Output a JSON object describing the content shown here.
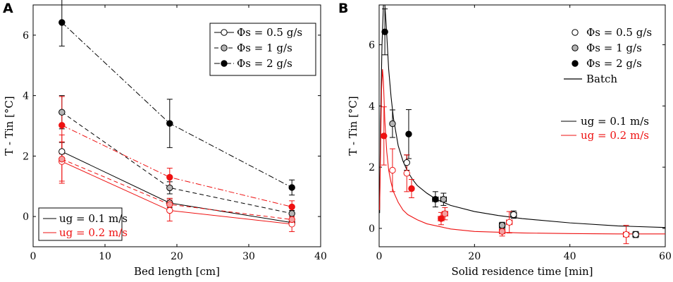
{
  "chart_data": [
    {
      "panel": "A",
      "type": "line",
      "xlabel": "Bed length [cm]",
      "ylabel": "T - Tin [°C]",
      "xlim": [
        0,
        40
      ],
      "ylim": [
        -1,
        7
      ],
      "xticks": [
        0,
        10,
        20,
        30,
        40
      ],
      "yticks": [
        0,
        2,
        4,
        6
      ],
      "x": [
        4,
        19,
        36
      ],
      "legend_flow": [
        {
          "text": "Φs = 0.5 g/s",
          "marker": "open",
          "dash": "solid"
        },
        {
          "text": "Φs = 1 g/s",
          "marker": "gray",
          "dash": "dashed"
        },
        {
          "text": "Φs = 2 g/s",
          "marker": "black",
          "dash": "dashdot"
        }
      ],
      "legend_velocity": [
        {
          "text": "ug = 0.1 m/s",
          "color": "#000000"
        },
        {
          "text": "ug = 0.2 m/s",
          "color": "#ee1111"
        }
      ],
      "series": [
        {
          "name": "Φs = 0.5 g/s, ug = 0.1 m/s",
          "marker": "open",
          "color": "#000000",
          "dash": "solid",
          "values": [
            2.15,
            0.45,
            -0.2
          ],
          "err": [
            0.3,
            0.15,
            0.1
          ]
        },
        {
          "name": "Φs = 1 g/s, ug = 0.1 m/s",
          "marker": "gray",
          "color": "#000000",
          "dash": "dashed",
          "values": [
            3.45,
            0.95,
            0.1
          ],
          "err": [
            0.55,
            0.2,
            0.1
          ]
        },
        {
          "name": "Φs = 2 g/s, ug = 0.1 m/s",
          "marker": "black",
          "color": "#000000",
          "dash": "dashdot",
          "values": [
            6.42,
            3.08,
            0.96
          ],
          "err": [
            0.78,
            0.8,
            0.25
          ]
        },
        {
          "name": "Φs = 0.5 g/s, ug = 0.2 m/s",
          "marker": "open",
          "color": "#ee1111",
          "dash": "solid",
          "values": [
            1.82,
            0.2,
            -0.25
          ],
          "err": [
            0.65,
            0.35,
            0.25
          ]
        },
        {
          "name": "Φs = 1 g/s, ug = 0.2 m/s",
          "marker": "gray",
          "color": "#ee1111",
          "dash": "dashed",
          "values": [
            1.9,
            0.4,
            -0.1
          ],
          "err": [
            0.8,
            0.2,
            0.15
          ]
        },
        {
          "name": "Φs = 2 g/s, ug = 0.2 m/s",
          "marker": "black",
          "color": "#ee1111",
          "dash": "dashdot",
          "values": [
            3.02,
            1.3,
            0.32
          ],
          "err": [
            0.95,
            0.3,
            0.2
          ]
        }
      ]
    },
    {
      "panel": "B",
      "type": "scatter",
      "xlabel": "Solid residence time [min]",
      "ylabel": "T - Tin [°C]",
      "xlim": [
        0,
        60
      ],
      "ylim": [
        -0.6,
        7.3
      ],
      "xticks": [
        0,
        20,
        40,
        60
      ],
      "yticks": [
        0,
        2,
        4,
        6
      ],
      "legend_flow": [
        {
          "text": "Φs = 0.5 g/s",
          "marker": "open"
        },
        {
          "text": "Φs = 1 g/s",
          "marker": "gray"
        },
        {
          "text": "Φs = 2 g/s",
          "marker": "black"
        },
        {
          "text": "Batch",
          "marker": "line"
        }
      ],
      "legend_velocity": [
        {
          "text": "ug = 0.1 m/s",
          "color": "#000000"
        },
        {
          "text": "ug = 0.2 m/s",
          "color": "#ee1111"
        }
      ],
      "points": [
        {
          "marker": "black",
          "color": "#000000",
          "x": 1.2,
          "y": 6.42,
          "yerr": 0.75,
          "xerr": 0
        },
        {
          "marker": "gray",
          "color": "#000000",
          "x": 2.8,
          "y": 3.42,
          "yerr": 0.45,
          "xerr": 0
        },
        {
          "marker": "open",
          "color": "#000000",
          "x": 5.8,
          "y": 2.15,
          "yerr": 0.25,
          "xerr": 0
        },
        {
          "marker": "black",
          "color": "#000000",
          "x": 6.2,
          "y": 3.08,
          "yerr": 0.8,
          "xerr": 0
        },
        {
          "marker": "black",
          "color": "#000000",
          "x": 11.8,
          "y": 0.95,
          "yerr": 0.25,
          "xerr": 0.6
        },
        {
          "marker": "gray",
          "color": "#000000",
          "x": 13.5,
          "y": 0.95,
          "yerr": 0.2,
          "xerr": 0.6
        },
        {
          "marker": "gray",
          "color": "#000000",
          "x": 25.8,
          "y": 0.1,
          "yerr": 0.1,
          "xerr": 0.6
        },
        {
          "marker": "open",
          "color": "#000000",
          "x": 28.2,
          "y": 0.45,
          "yerr": 0.12,
          "xerr": 0.6
        },
        {
          "marker": "open",
          "color": "#000000",
          "x": 53.8,
          "y": -0.2,
          "yerr": 0.1,
          "xerr": 0.6
        },
        {
          "marker": "black",
          "color": "#ee1111",
          "x": 1.0,
          "y": 3.02,
          "yerr": 0.95,
          "xerr": 0
        },
        {
          "marker": "open",
          "color": "#ee1111",
          "x": 2.8,
          "y": 1.9,
          "yerr": 0.7,
          "xerr": 0
        },
        {
          "marker": "open",
          "color": "#ee1111",
          "x": 5.8,
          "y": 1.8,
          "yerr": 0.6,
          "xerr": 0
        },
        {
          "marker": "black",
          "color": "#ee1111",
          "x": 6.8,
          "y": 1.3,
          "yerr": 0.3,
          "xerr": 0
        },
        {
          "marker": "black",
          "color": "#ee1111",
          "x": 13.0,
          "y": 0.32,
          "yerr": 0.2,
          "xerr": 0.6
        },
        {
          "marker": "gray",
          "color": "#ee1111",
          "x": 13.8,
          "y": 0.48,
          "yerr": 0.2,
          "xerr": 0.6
        },
        {
          "marker": "gray",
          "color": "#ee1111",
          "x": 25.8,
          "y": -0.1,
          "yerr": 0.15,
          "xerr": 0.6
        },
        {
          "marker": "open",
          "color": "#ee1111",
          "x": 27.3,
          "y": 0.2,
          "yerr": 0.35,
          "xerr": 0.6
        },
        {
          "marker": "open",
          "color": "#ee1111",
          "x": 51.8,
          "y": -0.2,
          "yerr": 0.3,
          "xerr": 0.6
        }
      ],
      "batch_curves": [
        {
          "name": "Batch, ug = 0.1 m/s",
          "color": "#000000",
          "x": [
            0.1,
            0.3,
            0.6,
            0.9,
            1.2,
            1.5,
            2,
            2.5,
            3,
            4,
            5,
            6,
            7,
            8,
            10,
            12,
            15,
            20,
            25,
            30,
            40,
            50,
            60
          ],
          "y": [
            0.5,
            3.5,
            6.0,
            7.3,
            7.3,
            6.6,
            5.2,
            4.3,
            3.6,
            2.7,
            2.2,
            1.85,
            1.6,
            1.4,
            1.15,
            0.95,
            0.75,
            0.55,
            0.42,
            0.32,
            0.18,
            0.08,
            0.03
          ]
        },
        {
          "name": "Batch, ug = 0.2 m/s",
          "color": "#ee1111",
          "x": [
            0.1,
            0.3,
            0.5,
            0.7,
            0.9,
            1.2,
            1.6,
            2,
            2.5,
            3,
            4,
            5,
            6,
            8,
            10,
            15,
            20,
            30,
            40,
            50,
            60
          ],
          "y": [
            0.6,
            2.5,
            4.5,
            5.2,
            4.8,
            3.5,
            2.5,
            1.9,
            1.5,
            1.2,
            0.85,
            0.6,
            0.45,
            0.28,
            0.15,
            -0.02,
            -0.1,
            -0.15,
            -0.17,
            -0.18,
            -0.18
          ]
        }
      ]
    }
  ]
}
